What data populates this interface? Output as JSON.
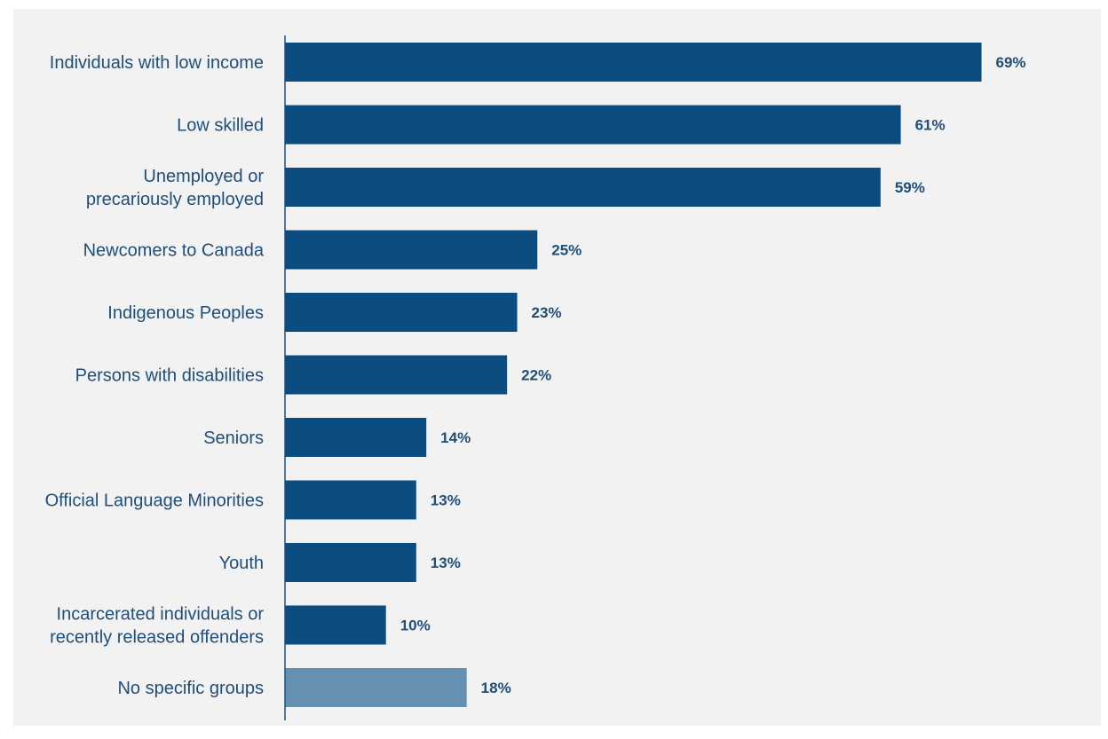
{
  "colors": {
    "background": "#f2f2f2",
    "bar": "#0b4d80",
    "bar_highlight": "#6590b2",
    "axis": "#1f4e79",
    "text": "#1f4e79"
  },
  "chart_data": {
    "type": "bar",
    "orientation": "horizontal",
    "categories": [
      [
        "Individuals with low income"
      ],
      [
        "Low skilled"
      ],
      [
        "Unemployed or",
        "precariously employed"
      ],
      [
        "Newcomers to Canada"
      ],
      [
        "Indigenous Peoples"
      ],
      [
        "Persons with disabilities"
      ],
      [
        "Seniors"
      ],
      [
        "Official Language Minorities"
      ],
      [
        "Youth"
      ],
      [
        "Incarcerated individuals or",
        "recently released offenders"
      ],
      [
        "No specific groups"
      ]
    ],
    "values": [
      69,
      61,
      59,
      25,
      23,
      22,
      14,
      13,
      13,
      10,
      18
    ],
    "value_labels": [
      "69%",
      "61%",
      "59%",
      "25%",
      "23%",
      "22%",
      "14%",
      "13%",
      "13%",
      "10%",
      "18%"
    ],
    "highlight_index": 10,
    "xlim": [
      0,
      80
    ],
    "grid": false,
    "legend": "none"
  }
}
